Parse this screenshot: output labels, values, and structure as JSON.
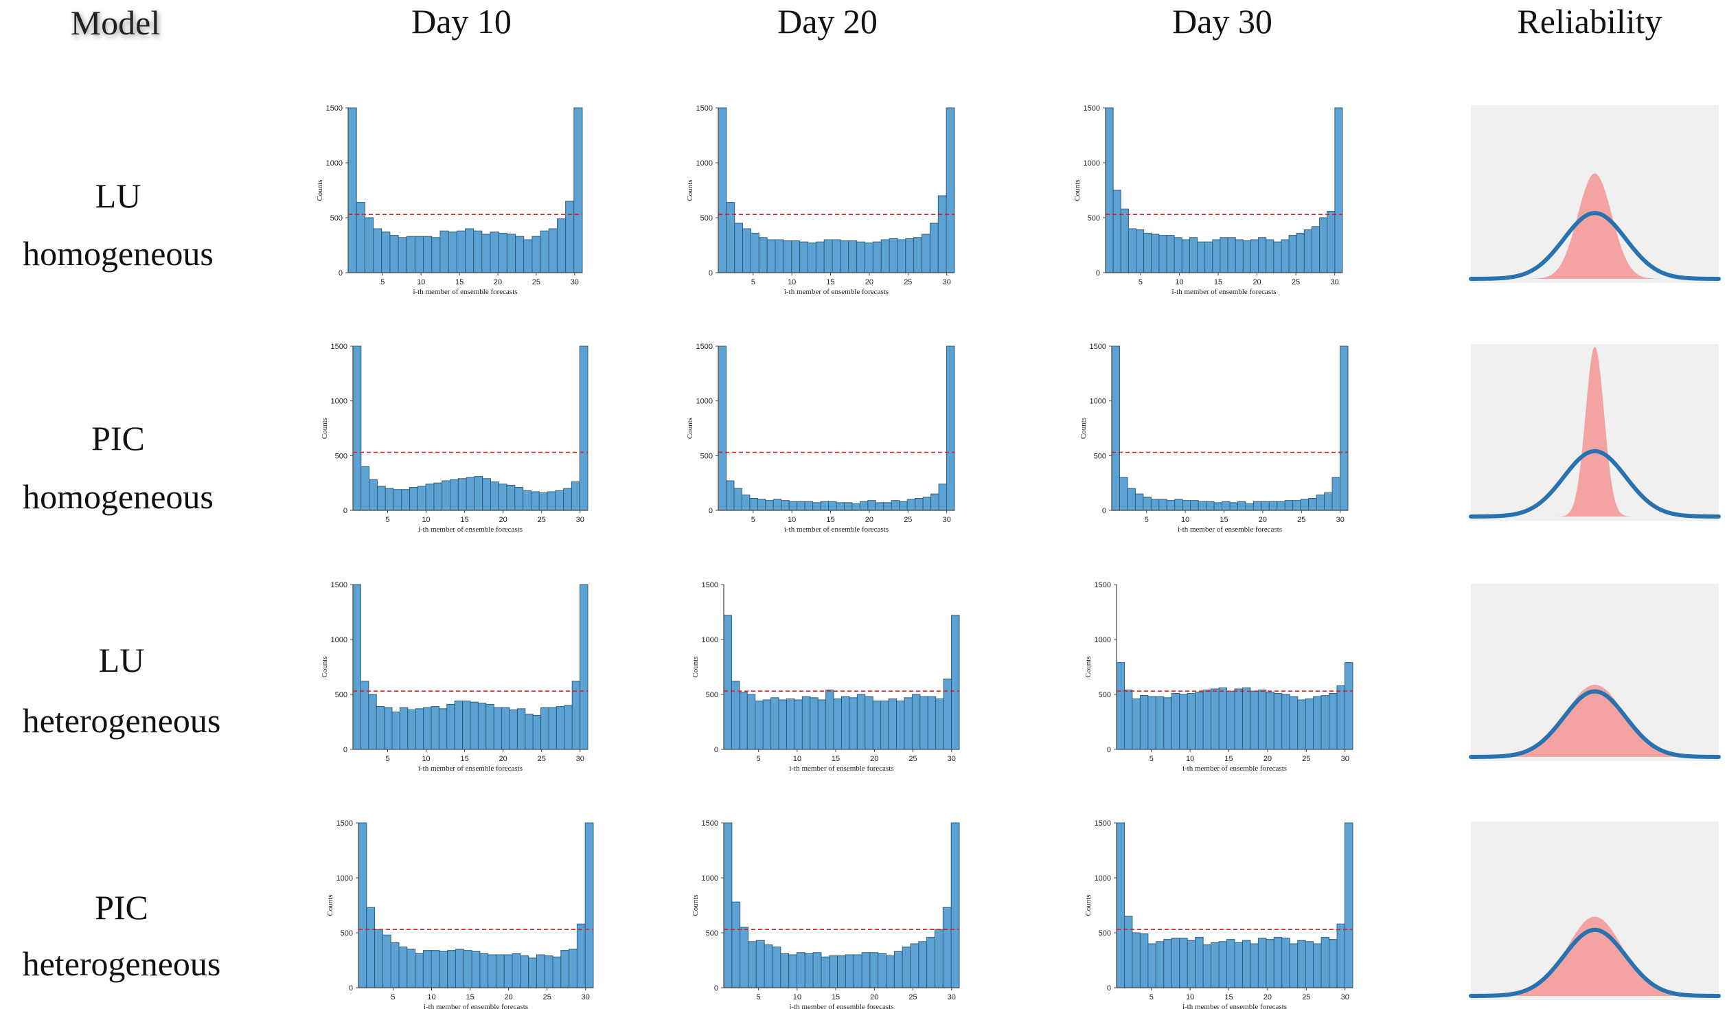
{
  "headers": {
    "model": "Model",
    "columns": [
      "Day 10",
      "Day 20",
      "Day 30"
    ],
    "reliability": "Reliability"
  },
  "rows": [
    {
      "name": "LU",
      "sub": "homogeneous"
    },
    {
      "name": "PIC",
      "sub": "homogeneous"
    },
    {
      "name": "LU",
      "sub": "heterogeneous"
    },
    {
      "name": "PIC",
      "sub": "heterogeneous"
    }
  ],
  "colors": {
    "bar_fill": "#5ca2d2",
    "bar_edge": "#2f5f80",
    "reference_line": "#e02020",
    "reliability_bg": "#f0f0f0",
    "reliability_fill": "#f4a3a3",
    "reliability_curve": "#2872b0"
  },
  "chart_data": [
    {
      "type": "bar",
      "row": "LU homogeneous",
      "column": "Day 10",
      "xlabel": "i-th member of ensemble forecasts",
      "ylabel": "Counts",
      "ylim": [
        0,
        1500
      ],
      "yticks": [
        0,
        500,
        1000,
        1500
      ],
      "xticks": [
        5,
        10,
        15,
        20,
        25,
        30
      ],
      "reference": 530,
      "values": [
        1500,
        640,
        500,
        400,
        370,
        340,
        320,
        330,
        330,
        330,
        320,
        380,
        370,
        380,
        400,
        380,
        350,
        370,
        360,
        350,
        330,
        300,
        330,
        380,
        400,
        490,
        650,
        1500
      ]
    },
    {
      "type": "bar",
      "row": "LU homogeneous",
      "column": "Day 20",
      "xlabel": "i-th member of ensemble forecasts",
      "ylabel": "Counts",
      "ylim": [
        0,
        1500
      ],
      "yticks": [
        0,
        500,
        1000,
        1500
      ],
      "xticks": [
        5,
        10,
        15,
        20,
        25,
        30
      ],
      "reference": 530,
      "values": [
        1500,
        640,
        450,
        400,
        360,
        320,
        300,
        300,
        290,
        290,
        280,
        270,
        280,
        300,
        300,
        290,
        290,
        280,
        270,
        280,
        300,
        310,
        300,
        310,
        320,
        350,
        450,
        700,
        1500
      ]
    },
    {
      "type": "bar",
      "row": "LU homogeneous",
      "column": "Day 30",
      "xlabel": "i-th member of ensemble forecasts",
      "ylabel": "Counts",
      "ylim": [
        0,
        1500
      ],
      "yticks": [
        0,
        500,
        1000,
        1500
      ],
      "xticks": [
        5,
        10,
        15,
        20,
        25,
        30
      ],
      "reference": 530,
      "values": [
        1500,
        750,
        580,
        400,
        390,
        360,
        350,
        340,
        340,
        320,
        300,
        320,
        280,
        280,
        300,
        320,
        320,
        300,
        290,
        300,
        320,
        300,
        280,
        300,
        340,
        360,
        390,
        420,
        500,
        560,
        1500
      ]
    },
    {
      "type": "bar",
      "row": "PIC homogeneous",
      "column": "Day 10",
      "xlabel": "i-th member of ensemble forecasts",
      "ylabel": "Counts",
      "ylim": [
        0,
        1500
      ],
      "yticks": [
        0,
        500,
        1000,
        1500
      ],
      "xticks": [
        5,
        10,
        15,
        20,
        25,
        30
      ],
      "reference": 530,
      "values": [
        1500,
        400,
        280,
        220,
        200,
        190,
        190,
        210,
        220,
        240,
        250,
        270,
        280,
        290,
        300,
        310,
        290,
        260,
        240,
        230,
        210,
        180,
        170,
        160,
        170,
        180,
        200,
        260,
        1500
      ]
    },
    {
      "type": "bar",
      "row": "PIC homogeneous",
      "column": "Day 20",
      "xlabel": "i-th member of ensemble forecasts",
      "ylabel": "Counts",
      "ylim": [
        0,
        1500
      ],
      "yticks": [
        0,
        500,
        1000,
        1500
      ],
      "xticks": [
        5,
        10,
        15,
        20,
        25,
        30
      ],
      "reference": 530,
      "values": [
        1500,
        270,
        200,
        140,
        110,
        100,
        90,
        100,
        90,
        80,
        80,
        80,
        70,
        80,
        80,
        70,
        70,
        60,
        80,
        90,
        70,
        70,
        90,
        80,
        100,
        110,
        120,
        150,
        240,
        1500
      ]
    },
    {
      "type": "bar",
      "row": "PIC homogeneous",
      "column": "Day 30",
      "xlabel": "i-th member of ensemble forecasts",
      "ylabel": "Counts",
      "ylim": [
        0,
        1500
      ],
      "yticks": [
        0,
        500,
        1000,
        1500
      ],
      "xticks": [
        5,
        10,
        15,
        20,
        25,
        30
      ],
      "reference": 530,
      "values": [
        1500,
        300,
        200,
        150,
        120,
        100,
        100,
        90,
        100,
        90,
        90,
        80,
        80,
        70,
        80,
        70,
        80,
        60,
        80,
        80,
        80,
        80,
        90,
        90,
        100,
        110,
        140,
        160,
        300,
        1500
      ]
    },
    {
      "type": "bar",
      "row": "LU heterogeneous",
      "column": "Day 10",
      "xlabel": "i-th member of ensemble forecasts",
      "ylabel": "Counts",
      "ylim": [
        0,
        1500
      ],
      "yticks": [
        0,
        500,
        1000,
        1500
      ],
      "xticks": [
        5,
        10,
        15,
        20,
        25,
        30
      ],
      "reference": 530,
      "values": [
        1500,
        620,
        500,
        390,
        380,
        340,
        380,
        360,
        370,
        380,
        390,
        370,
        410,
        440,
        440,
        430,
        420,
        410,
        380,
        380,
        360,
        370,
        320,
        310,
        380,
        380,
        390,
        400,
        620,
        1500
      ]
    },
    {
      "type": "bar",
      "row": "LU heterogeneous",
      "column": "Day 20",
      "xlabel": "i-th member of ensemble forecasts",
      "ylabel": "Counts",
      "ylim": [
        0,
        1500
      ],
      "yticks": [
        0,
        500,
        1000,
        1500
      ],
      "xticks": [
        5,
        10,
        15,
        20,
        25,
        30
      ],
      "reference": 530,
      "values": [
        1220,
        620,
        520,
        500,
        440,
        450,
        470,
        450,
        460,
        450,
        480,
        470,
        450,
        540,
        460,
        480,
        470,
        500,
        480,
        440,
        440,
        460,
        440,
        470,
        500,
        480,
        480,
        460,
        640,
        1220
      ]
    },
    {
      "type": "bar",
      "row": "LU heterogeneous",
      "column": "Day 30",
      "xlabel": "i-th member of ensemble forecasts",
      "ylabel": "Counts",
      "ylim": [
        0,
        1500
      ],
      "yticks": [
        0,
        500,
        1000,
        1500
      ],
      "xticks": [
        5,
        10,
        15,
        20,
        25,
        30
      ],
      "reference": 530,
      "values": [
        790,
        540,
        460,
        490,
        480,
        480,
        470,
        510,
        500,
        510,
        520,
        540,
        550,
        560,
        530,
        550,
        560,
        530,
        540,
        520,
        510,
        500,
        480,
        450,
        460,
        480,
        490,
        510,
        580,
        790
      ]
    },
    {
      "type": "bar",
      "row": "PIC heterogeneous",
      "column": "Day 10",
      "xlabel": "i-th member of ensemble forecasts",
      "ylabel": "Counts",
      "ylim": [
        0,
        1500
      ],
      "yticks": [
        0,
        500,
        1000,
        1500
      ],
      "xticks": [
        5,
        10,
        15,
        20,
        25,
        30
      ],
      "reference": 530,
      "values": [
        1500,
        730,
        530,
        480,
        410,
        370,
        350,
        310,
        340,
        340,
        330,
        340,
        350,
        340,
        330,
        310,
        300,
        300,
        300,
        310,
        290,
        270,
        300,
        290,
        280,
        340,
        350,
        580,
        1500
      ]
    },
    {
      "type": "bar",
      "row": "PIC heterogeneous",
      "column": "Day 20",
      "xlabel": "i-th member of ensemble forecasts",
      "ylabel": "Counts",
      "ylim": [
        0,
        1500
      ],
      "yticks": [
        0,
        500,
        1000,
        1500
      ],
      "xticks": [
        5,
        10,
        15,
        20,
        25,
        30
      ],
      "reference": 530,
      "values": [
        1500,
        780,
        550,
        420,
        430,
        390,
        370,
        310,
        300,
        320,
        310,
        320,
        280,
        290,
        290,
        300,
        300,
        320,
        320,
        310,
        290,
        330,
        370,
        400,
        420,
        460,
        530,
        730,
        1500
      ]
    },
    {
      "type": "bar",
      "row": "PIC heterogeneous",
      "column": "Day 30",
      "xlabel": "i-th member of ensemble forecasts",
      "ylabel": "Counts",
      "ylim": [
        0,
        1500
      ],
      "yticks": [
        0,
        500,
        1000,
        1500
      ],
      "xticks": [
        5,
        10,
        15,
        20,
        25,
        30
      ],
      "reference": 530,
      "values": [
        1500,
        650,
        500,
        490,
        400,
        420,
        440,
        450,
        450,
        430,
        460,
        390,
        410,
        420,
        440,
        410,
        430,
        400,
        450,
        440,
        460,
        450,
        400,
        430,
        420,
        400,
        460,
        440,
        580,
        1500
      ]
    }
  ],
  "reliability": [
    {
      "row": "LU homogeneous",
      "fill_peak": 1.6,
      "fill_sigma": 0.55,
      "curve_peak": 1.0,
      "curve_sigma": 1.0
    },
    {
      "row": "PIC homogeneous",
      "fill_peak": 2.6,
      "fill_sigma": 0.3,
      "curve_peak": 1.0,
      "curve_sigma": 1.0
    },
    {
      "row": "LU heterogeneous",
      "fill_peak": 1.1,
      "fill_sigma": 0.95,
      "curve_peak": 1.0,
      "curve_sigma": 1.0
    },
    {
      "row": "PIC heterogeneous",
      "fill_peak": 1.2,
      "fill_sigma": 0.9,
      "curve_peak": 1.0,
      "curve_sigma": 1.0
    }
  ]
}
